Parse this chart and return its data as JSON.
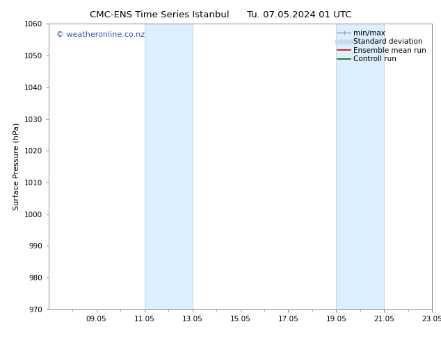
{
  "title_left": "CMC-ENS Time Series Istanbul",
  "title_right": "Tu. 07.05.2024 01 UTC",
  "ylabel": "Surface Pressure (hPa)",
  "ylim": [
    970,
    1060
  ],
  "yticks": [
    970,
    980,
    990,
    1000,
    1010,
    1020,
    1030,
    1040,
    1050,
    1060
  ],
  "xlim": [
    0,
    16
  ],
  "xtick_labels": [
    "09.05",
    "11.05",
    "13.05",
    "15.05",
    "17.05",
    "19.05",
    "21.05",
    "23.05"
  ],
  "xtick_positions": [
    2,
    4,
    6,
    8,
    10,
    12,
    14,
    16
  ],
  "shaded_regions": [
    {
      "x_start": 4.0,
      "x_end": 6.0
    },
    {
      "x_start": 12.0,
      "x_end": 14.0
    }
  ],
  "shaded_color": "#ddeeff",
  "shaded_edge_color": "#b0ccdd",
  "watermark_text": "© weatheronline.co.nz",
  "watermark_color": "#3355bb",
  "legend_entries": [
    {
      "label": "min/max",
      "color": "#999999",
      "lw": 1.0
    },
    {
      "label": "Standard deviation",
      "color": "#c8dce8",
      "lw": 5
    },
    {
      "label": "Ensemble mean run",
      "color": "#cc0000",
      "lw": 1.2
    },
    {
      "label": "Controll run",
      "color": "#006600",
      "lw": 1.2
    }
  ],
  "background_color": "#ffffff",
  "axes_bg_color": "#ffffff",
  "spine_color": "#888888",
  "title_fontsize": 9.5,
  "label_fontsize": 8,
  "tick_fontsize": 7.5,
  "watermark_fontsize": 8,
  "legend_fontsize": 7.5
}
